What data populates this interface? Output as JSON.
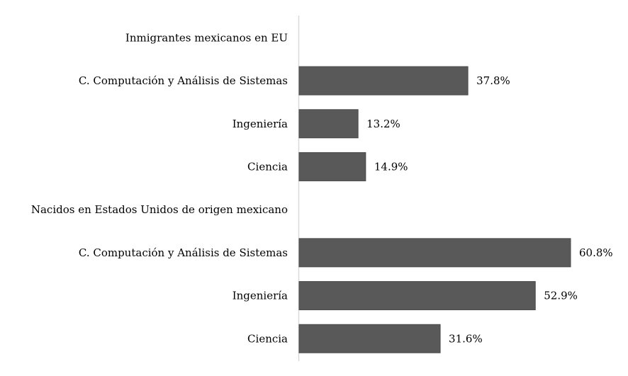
{
  "chart_data": {
    "type": "bar",
    "orientation": "horizontal",
    "categories": [
      "Inmigrantes mexicanos en EU",
      "C. Computación y Análisis de Sistemas",
      "Ingeniería",
      "Ciencia",
      "Nacidos en Estados Unidos de origen mexicano",
      "C. Computación y Análisis de Sistemas",
      "Ingeniería",
      "Ciencia"
    ],
    "values": [
      null,
      37.8,
      13.2,
      14.9,
      null,
      60.8,
      52.9,
      31.6
    ],
    "data_labels": [
      "",
      "37.8%",
      "13.2%",
      "14.9%",
      "",
      "60.8%",
      "52.9%",
      "31.6%"
    ],
    "title": "",
    "xlabel": "",
    "ylabel": "",
    "xlim": [
      0,
      70
    ],
    "grid": false,
    "legend": "none",
    "bar_color": "#595959",
    "axis_color": "#d9d9d9"
  }
}
